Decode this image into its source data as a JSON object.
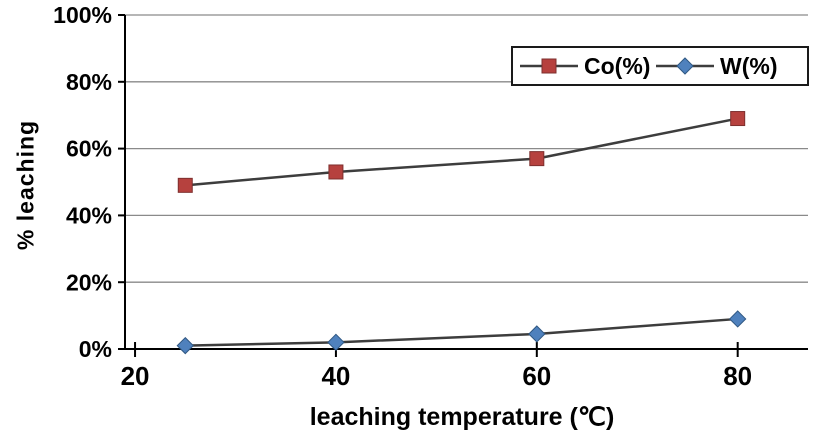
{
  "chart_data": {
    "type": "line",
    "title": "",
    "xlabel": "leaching temperature (℃)",
    "ylabel": "% leaching",
    "x": [
      25,
      40,
      60,
      80
    ],
    "series": [
      {
        "name": "Co(%)",
        "marker": "square",
        "color": "#b6413e",
        "values": [
          49,
          53,
          57,
          69
        ]
      },
      {
        "name": "W(%)",
        "marker": "diamond",
        "color": "#4f81bd",
        "values": [
          1,
          2,
          4.5,
          9
        ]
      }
    ],
    "xlim": [
      19,
      87
    ],
    "xticks": [
      20,
      40,
      60,
      80
    ],
    "ylim": [
      0,
      100
    ],
    "yticks": [
      0,
      20,
      40,
      60,
      80,
      100
    ],
    "ytick_suffix": "%",
    "grid": true,
    "legend_position": "top-right",
    "line_color": "#3d3d3d",
    "grid_color": "#8a8a8a",
    "axis_color": "#000000",
    "text_color": "#000000"
  }
}
